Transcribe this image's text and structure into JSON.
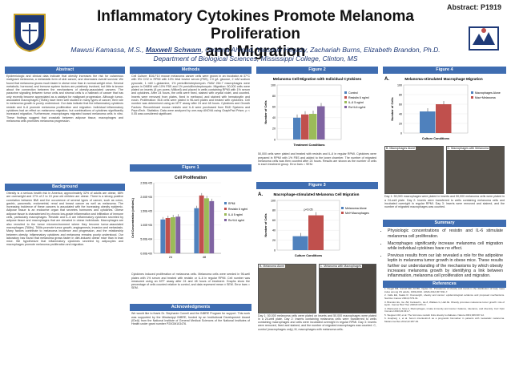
{
  "header": {
    "abstract_number": "Abstract: P1919",
    "title_line1": "Inflammatory Cytokines Promote Melanoma Proliferation",
    "title_line2": "and Migration",
    "authors_pre": "Mawusi Kamassa, M.S., ",
    "authors_presenter": "Maxwell Schwam",
    "authors_post": ", Omama Ahmad, Yassmin Hegazy, Zachariah Burns, Elizabeth Brandon, Ph.D.",
    "department": "Department of Biological Sciences, Mississippi College, Clinton, MS"
  },
  "sections": {
    "abstract": "Abstract",
    "background": "Background",
    "methods": "Methods",
    "figure1": "Figure 1",
    "acknowledgments": "Acknowledgments",
    "figure2": "Figure 2",
    "figure3": "Figure 3",
    "figure4": "Figure 4",
    "summary": "Summary",
    "references": "References"
  },
  "text": {
    "abstract": "Epidemiologic and clinical data indicate that obesity increases the risk for cutaneous malignant melanoma, a metastatic form of skin cancer, and decreases overall survival. We found that melanoma grows much faster in obese mice than in normal-weight mice. Several metabolic, hormonal, and immune system factors are putatively involved, but little is known about the connection between the mechanisms of obesity-associated cancers. The paracrine signaling between tumor cells and stromal cells is a hallmark of cancer that has only recently become appreciated as a catalyst for malignant progression. Although tumor-associated macrophages (TAMs) have been well studied in many types of cancer, their role in melanoma growth is poorly understood. Our data indicate that the inflammatory cytokines resistin and IL-6 promote melanoma proliferation and migration. Individual inflammatory cytokines had an effect on melanoma migration, but combinations of cytokines significantly increased migration. Furthermore, macrophages migrated toward melanoma cells in vitro. These findings suggest that crosstalk between adipose tissue, macrophages and melanoma cells promotes melanoma progression.",
    "background": "Obesity is a serious health risk in America; approximately 32% of adults are obese, 68% are overweight and 17% of 2 to 19 year old children are obese. There is a strong positive correlation between BMI and the occurrence of several types of cancer, such as colon, gastric, pancreatic, endometrial, renal and breast cancer as well as melanoma. The increasing incidence of these cancers is associated with the increasing obesity epidemic. Adipose tissue is an endocrine organ that secretes hormones and cytokines. Obese adipose tissue is characterized by chronic low-grade inflammation and infiltration of immune cells, particularly macrophages. Resistin and IL-6 are inflammatory cytokines secreted by adipose tissue and macrophages that are elevated in obese individuals. Macrophages are also recruited to the tumor microenvironment where they become tumor-associated macrophages (TAMs). TAMs promote tumor growth, angiogenesis, invasion and metastasis. Many factors contribute to melanoma incidence and progression, and the relationship between obesity, inflammatory cytokines and melanoma remains poorly understood. Our laboratory has found that melanoma grows faster in diet-induced obese mice than in lean mice. We hypothesize that inflammatory cytokines secreted by adipocytes and macrophages promote melanoma proliferation and migration.",
    "methods": "Cell Culture: B16-F10 mouse melanoma cancer cells were grown in an incubator at 37°C with 5% CO2 in RPMI with 10% fetal bovine serum (FBS), 2.0 g/L glucose, 2 mM sodium pyruvate, 1 mM L-glutamine, 1% penicillin/streptomycin. RAW 264.7 macrophages were grown in DMEM with 10% FBS and 1% penicillin/streptomycin. Migration: 50,000 cells were plated on inserts (8 µm pores; Millicell) and placed in wells containing RPMI with 1% serum and cytokines. After 24 hours, the cells were fixed, stained with crystal violet, and counted. Inserts were removed from plates, fixed in methanol, and stained with hematoxylin and eosin. Proliferation: B16 cells were plated in 96-well plates and treated with cytokines. Cell number was determined using an MTT assay after 24 and 48 hours. Cytokines and Growth Factors: Recombinant mouse resistin and IL-6 were purchased from R&D Systems and PeproTech. Statistics: Data were analyzed by one-way ANOVA using GraphPad Prism; p < 0.05 was considered significant.",
    "acknowledgments": "We would like to thank Dr. Stephanie Cornell and the INBRE Program for support. This work was supported by the Mississippi INBRE, funded by an Institutional Development Award (IDeA) from the National Institute of General Medical Sciences of the National Institutes of Health under grant number P20GM103476."
  },
  "figure1": {
    "caption": "Cytokines induced proliferation of melanoma cells. Melanoma cells were seeded in 96-well plates with 1% serum and treated with resistin or IL-6 in regular RPMI. Cell number was measured using an MTT assay after 24 and 48 hours of treatment. Graphs show the percentage of cells counted relative to control, and data represent mean ± SEM. Error bars = SEM."
  },
  "figure2": {
    "caption": "50,000 cells were plated and treated with resistin and IL-6 in regular RPMI. Cytokines were prepared in RPMI with 1% FBS and added to the lower chamber. The number of migrated melanoma cells was then counted after 24 hours. Results are shown as the number of cells in each treatment group. Error bars = SEM."
  },
  "figure3": {
    "caption": "Day 1: 50,000 melanoma cells were plated on inserts and 50,000 macrophages were plated in a 24-well plate. Day 2: Inserts containing melanoma cells were transferred to wells containing macrophages and cells were incubated overnight in regular RPMI. Day 3: Inserts were removed, fixed and stained, and the number of migrated macrophages was counted. C, control (macrophages only); M, macrophages with melanoma cells.",
    "photo_b_label": "B. Melanoma Alone",
    "photo_c_label": "C. Melanoma with Macrophages"
  },
  "figure4": {
    "caption": "Day 1: 50,000 macrophages were plated in inserts and 50,000 melanoma cells were plated in a 24-well plate. Day 2: Inserts were transferred to wells containing melanoma cells and incubated overnight in regular RPMI. Day 3: Inserts were removed and stained, and the number of migrated macrophages was counted.",
    "photo_b_label": "B. Macrophages Alone",
    "photo_c_label": "C. Macrophages with Melanoma"
  },
  "summary": {
    "items": [
      "Physiologic concentrations of resistin and IL-6 stimulate melanoma cell proliferation.",
      "Macrophages significantly increase melanoma cell migration while individual cytokines have no effect.",
      "Previous results from our lab revealed a role for the adipokine leptin in melanoma tumor growth in obese mice. These results further our understanding of the mechanisms by which obesity increases melanoma growth by identifying a link between inflammation, melanoma cell proliferation and migration."
    ]
  },
  "references": [
    "1. Flegal KM, Carroll MD, Kit BK, Ogden CL. Prevalence of obesity and trends in the distribution of body mass index among US adults, 1999-2010. JAMA 2012;307:491-7.",
    "2. Calle EE, Kaaks R. Overweight, obesity and cancer: epidemiological evidence and proposed mechanisms. Nat Rev Cancer 2004;4:579-91.",
    "3. Brandon EL, Gu JW, Cantwell L, He Z, Wallace G, Hall JE. Obesity promotes melanoma tumor growth: role of leptin. Cancer Biol Ther 2009;8:1871-9.",
    "4. Mantovani A, Sica A. Macrophages, innate immunity and cancer: balance, tolerance, and diversity. Curr Opin Immunol 2010;22:231-7.",
    "5. Steppan CM, et al. The hormone resistin links obesity to diabetes. Nature 2001;409:307-12.",
    "6. Hoejberg L, et al. Serum interleukin-6 as a prognostic biomarker in patients with metastatic melanoma. Melanoma Res 2012;22:287-93."
  ],
  "charts": {
    "fig1": {
      "type": "bar",
      "title": "Cell Proliferation",
      "ylabel": "Cell Concentration (cells/mL)",
      "categories": [
        "24",
        "48"
      ],
      "yticks": [
        "0.00E+00",
        "5.00E+04",
        "1.00E+05",
        "1.50E+05",
        "2.00E+05",
        "2.50E+05"
      ],
      "ylim": [
        0,
        250000
      ],
      "series": [
        {
          "name": "RPMI",
          "color": "#4f81bd",
          "values": [
            120000,
            160000
          ]
        },
        {
          "name": "Resistin 6 ng/ml",
          "color": "#c0504d",
          "values": [
            125000,
            205000
          ]
        },
        {
          "name": "IL-6 5 ng/ml",
          "color": "#9bbb59",
          "values": [
            128000,
            195000
          ]
        },
        {
          "name": "Rs+IL6 ng/ml",
          "color": "#8064a2",
          "values": [
            130000,
            185000
          ]
        }
      ]
    },
    "fig2": {
      "type": "bar",
      "title": "Melanoma Cell Migration with Individual Cytokines",
      "xlabel": "Treatment Conditions",
      "ylabel": "Number of Cells",
      "yticks": [
        "0",
        "20",
        "40",
        "60",
        "80",
        "100"
      ],
      "ylim": [
        0,
        100
      ],
      "series": [
        {
          "name": "Control",
          "color": "#4f81bd",
          "value": 40
        },
        {
          "name": "Resistin 6 ng/ml",
          "color": "#c0504d",
          "value": 46
        },
        {
          "name": "IL-6 5 ng/ml",
          "color": "#9bbb59",
          "value": 47
        },
        {
          "name": "Rs+IL6 ng/ml",
          "color": "#8064a2",
          "value": 61
        }
      ]
    },
    "fig3": {
      "type": "bar",
      "label": "A.",
      "title": "Macrophage-stimulated Melanoma Cell Migration",
      "xlabel": "Culture Conditions",
      "ylabel": "Number of Cells",
      "annotation": "p<0.05",
      "yticks": [
        "0",
        "20",
        "40",
        "60",
        "80",
        "100"
      ],
      "ylim": [
        0,
        100
      ],
      "series": [
        {
          "name": "Melanoma Alone",
          "color": "#4f81bd",
          "value": 28
        },
        {
          "name": "Mel+Macrophages",
          "color": "#c0504d",
          "value": 70
        }
      ]
    },
    "fig4": {
      "type": "bar",
      "label": "A.",
      "title": "Melanoma-stimulated Macrophage Migration",
      "xlabel": "Culture Conditions",
      "ylabel": "Number of Cells",
      "yticks": [
        "0",
        "20",
        "40",
        "60",
        "80",
        "100"
      ],
      "ylim": [
        0,
        100
      ],
      "series": [
        {
          "name": "Macrophages Alone",
          "color": "#4f81bd",
          "value": 45
        },
        {
          "name": "Mac+Melanoma",
          "color": "#c0504d",
          "value": 60
        }
      ]
    }
  }
}
